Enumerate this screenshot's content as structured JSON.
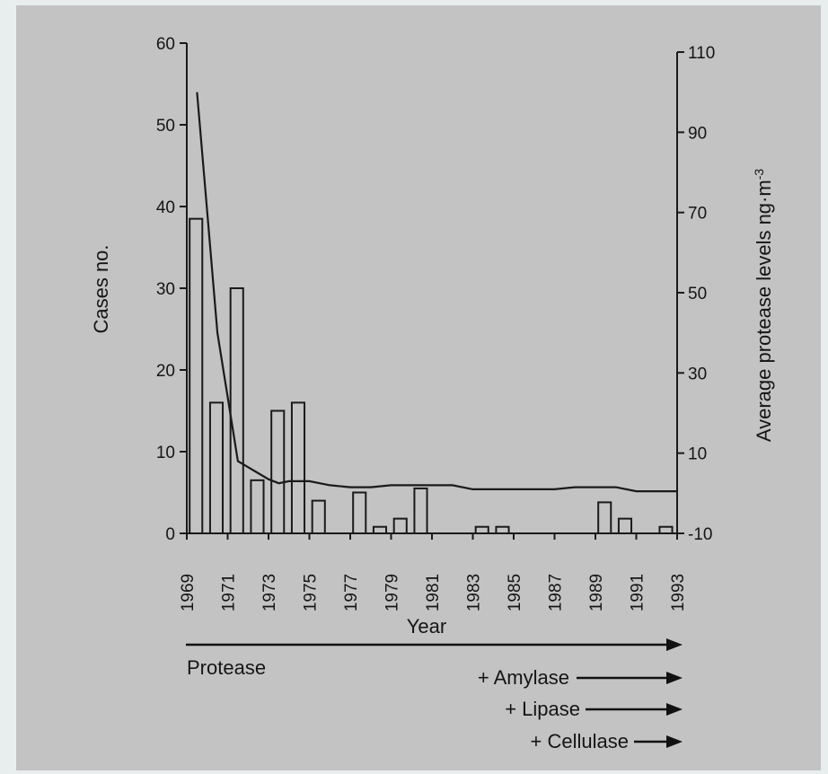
{
  "chart_data": {
    "type": "bar",
    "title": "",
    "xlabel": "Year",
    "ylabel": "Cases no.",
    "y2label": "Average protease levels ng·m",
    "y2label_sup": "-3",
    "ylim": [
      0,
      60
    ],
    "y2lim": [
      -10,
      110
    ],
    "yticks": [
      0,
      10,
      20,
      30,
      40,
      50,
      60
    ],
    "y2ticks": [
      -10,
      10,
      30,
      50,
      70,
      90,
      110
    ],
    "xtick_labels": [
      "1969",
      "1971",
      "1973",
      "1975",
      "1977",
      "1979",
      "1981",
      "1983",
      "1985",
      "1987",
      "1989",
      "1991",
      "1993"
    ],
    "categories": [
      1969,
      1970,
      1971,
      1972,
      1973,
      1974,
      1975,
      1976,
      1977,
      1978,
      1979,
      1980,
      1981,
      1982,
      1983,
      1984,
      1985,
      1986,
      1987,
      1988,
      1989,
      1990,
      1991,
      1992
    ],
    "series": [
      {
        "type": "bar",
        "axis": "left",
        "values": [
          38.5,
          16,
          30,
          6.5,
          15,
          16,
          4,
          0,
          5,
          0.8,
          1.8,
          5.5,
          0,
          0,
          0.8,
          0.8,
          0,
          0,
          0,
          0,
          3.8,
          1.8,
          0,
          0.8
        ]
      },
      {
        "type": "line",
        "axis": "right",
        "x": [
          1969.5,
          1970,
          1970.5,
          1971,
          1971.5,
          1972,
          1972.5,
          1973,
          1973.5,
          1974,
          1975,
          1976,
          1977,
          1978,
          1979,
          1980,
          1981,
          1982,
          1983,
          1984,
          1985,
          1986,
          1987,
          1988,
          1989,
          1990,
          1991,
          1992,
          1993
        ],
        "values": [
          100,
          70,
          40,
          24,
          8,
          6.5,
          5,
          3.5,
          2.5,
          3,
          3,
          2,
          1.5,
          1.5,
          2,
          2,
          2,
          2,
          1,
          1,
          1,
          1,
          1,
          1.5,
          1.5,
          1.5,
          0.5,
          0.5,
          0.5
        ]
      }
    ]
  },
  "enzymes": [
    {
      "label": "Protease"
    },
    {
      "label": "+ Amylase"
    },
    {
      "label": "+ Lipase"
    },
    {
      "label": "+ Cellulase"
    }
  ]
}
